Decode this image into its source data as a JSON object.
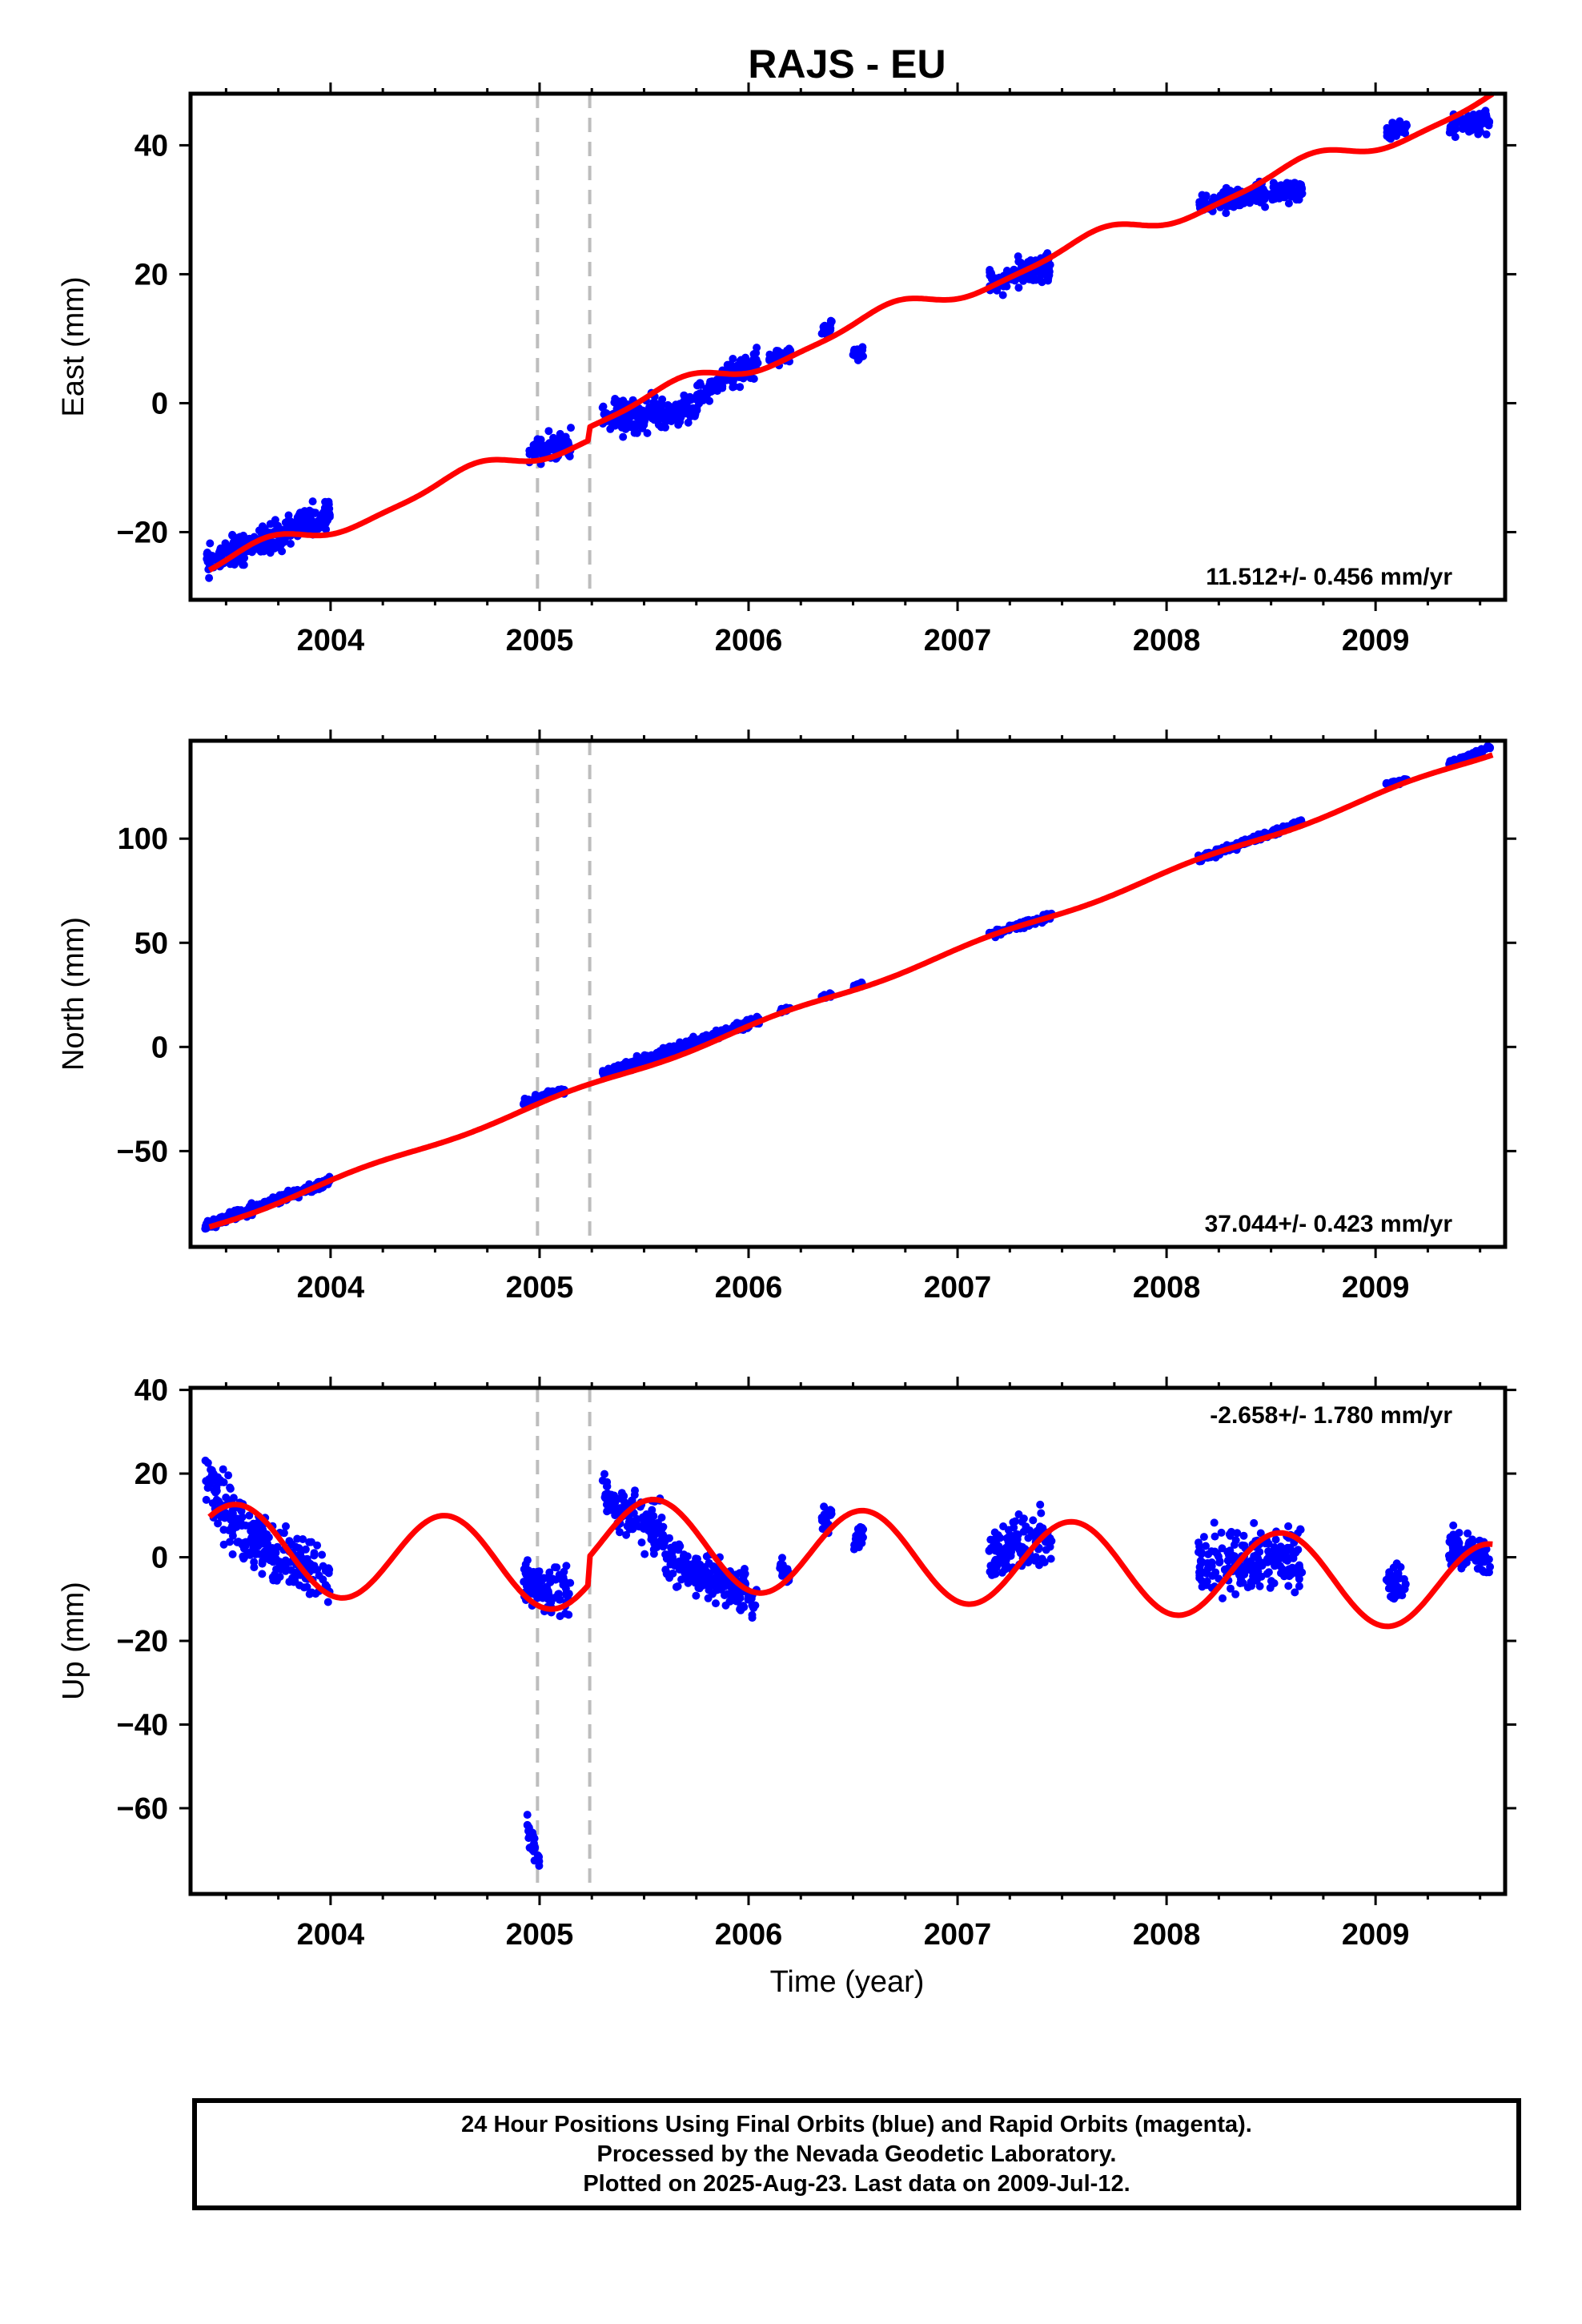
{
  "title": "RAJS - EU",
  "xlabel": "Time (year)",
  "colors": {
    "data": "#0000ff",
    "model": "#ff0000",
    "offset": "#bdbdbd"
  },
  "footnote": {
    "line1": "24 Hour Positions Using Final Orbits (blue) and Rapid Orbits (magenta).",
    "line2": "Processed by the Nevada Geodetic Laboratory.",
    "line3": "Plotted on 2025-Aug-23. Last data on 2009-Jul-12."
  },
  "chart_data": [
    {
      "type": "scatter",
      "ylabel": "East (mm)",
      "rate_label": "11.512+/- 0.456 mm/yr",
      "rate_position": "bottom-right",
      "xlim": [
        2003.33,
        2009.62
      ],
      "ylim": [
        -30.5,
        48
      ],
      "xticks": [
        2004,
        2005,
        2006,
        2007,
        2008,
        2009
      ],
      "yticks": [
        -20,
        0,
        20,
        40
      ],
      "offset_lines": [
        2004.99,
        2005.24
      ],
      "data_clusters": [
        {
          "x_start": 2003.4,
          "x_end": 2004.0,
          "y_start": -25,
          "y_end": -17,
          "spread": 2.5
        },
        {
          "x_start": 2004.95,
          "x_end": 2005.15,
          "y_start": -8,
          "y_end": -6,
          "spread": 2
        },
        {
          "x_start": 2005.3,
          "x_end": 2005.75,
          "y_start": -2,
          "y_end": -1,
          "spread": 2.5
        },
        {
          "x_start": 2005.75,
          "x_end": 2006.05,
          "y_start": 1,
          "y_end": 7,
          "spread": 2
        },
        {
          "x_start": 2006.1,
          "x_end": 2006.2,
          "y_start": 7,
          "y_end": 7.5,
          "spread": 1
        },
        {
          "x_start": 2006.35,
          "x_end": 2006.4,
          "y_start": 11,
          "y_end": 12,
          "spread": 1
        },
        {
          "x_start": 2006.5,
          "x_end": 2006.55,
          "y_start": 7.5,
          "y_end": 8,
          "spread": 1
        },
        {
          "x_start": 2007.15,
          "x_end": 2007.45,
          "y_start": 19,
          "y_end": 21,
          "spread": 2
        },
        {
          "x_start": 2008.15,
          "x_end": 2008.65,
          "y_start": 31,
          "y_end": 33,
          "spread": 1.5
        },
        {
          "x_start": 2009.05,
          "x_end": 2009.15,
          "y_start": 42,
          "y_end": 43,
          "spread": 1
        },
        {
          "x_start": 2009.35,
          "x_end": 2009.55,
          "y_start": 43,
          "y_end": 44,
          "spread": 1.5
        }
      ],
      "model": {
        "ref_year": 2003.4,
        "start_value": -26,
        "rate": 11.512,
        "seasonal": [
          {
            "a": 1.5,
            "phase": 0.0
          },
          {
            "a": 0.4,
            "phase": 0.3
          }
        ],
        "steps": [
          {
            "x": 2005.24,
            "dy": 2.0
          }
        ]
      }
    },
    {
      "type": "scatter",
      "ylabel": "North (mm)",
      "rate_label": "37.044+/- 0.423 mm/yr",
      "rate_position": "bottom-right",
      "xlim": [
        2003.33,
        2009.62
      ],
      "ylim": [
        -96,
        147
      ],
      "xticks": [
        2004,
        2005,
        2006,
        2007,
        2008,
        2009
      ],
      "yticks": [
        -50,
        0,
        50,
        100
      ],
      "offset_lines": [
        2004.99,
        2005.24
      ],
      "data_clusters": [
        {
          "x_start": 2003.4,
          "x_end": 2004.0,
          "y_start": -86,
          "y_end": -64,
          "spread": 2
        },
        {
          "x_start": 2004.92,
          "x_end": 2005.12,
          "y_start": -27,
          "y_end": -21,
          "spread": 1.5
        },
        {
          "x_start": 2005.3,
          "x_end": 2006.05,
          "y_start": -13,
          "y_end": 13,
          "spread": 2
        },
        {
          "x_start": 2006.15,
          "x_end": 2006.2,
          "y_start": 17,
          "y_end": 19,
          "spread": 1
        },
        {
          "x_start": 2006.35,
          "x_end": 2006.4,
          "y_start": 24,
          "y_end": 25,
          "spread": 1
        },
        {
          "x_start": 2006.5,
          "x_end": 2006.55,
          "y_start": 29,
          "y_end": 30,
          "spread": 1
        },
        {
          "x_start": 2007.15,
          "x_end": 2007.45,
          "y_start": 54,
          "y_end": 63,
          "spread": 1.5
        },
        {
          "x_start": 2008.15,
          "x_end": 2008.65,
          "y_start": 90,
          "y_end": 108,
          "spread": 1.5
        },
        {
          "x_start": 2009.05,
          "x_end": 2009.15,
          "y_start": 126,
          "y_end": 128,
          "spread": 1
        },
        {
          "x_start": 2009.35,
          "x_end": 2009.55,
          "y_start": 136,
          "y_end": 144,
          "spread": 1
        }
      ],
      "model": {
        "ref_year": 2003.4,
        "start_value": -87,
        "rate": 37.044,
        "seasonal": [
          {
            "a": 1.2,
            "phase": 0.5
          }
        ],
        "steps": []
      }
    },
    {
      "type": "scatter",
      "ylabel": "Up (mm)",
      "rate_label": "-2.658+/- 1.780 mm/yr",
      "rate_position": "top-right",
      "xlim": [
        2003.33,
        2009.62
      ],
      "ylim": [
        -80.5,
        40.5
      ],
      "xticks": [
        2004,
        2005,
        2006,
        2007,
        2008,
        2009
      ],
      "yticks": [
        -60,
        -40,
        -20,
        0,
        20,
        40
      ],
      "offset_lines": [
        2004.99,
        2005.24
      ],
      "data_clusters": [
        {
          "x_start": 2003.4,
          "x_end": 2003.6,
          "y_start": 18,
          "y_end": 5,
          "spread": 7
        },
        {
          "x_start": 2003.6,
          "x_end": 2004.0,
          "y_start": 5,
          "y_end": -5,
          "spread": 6
        },
        {
          "x_start": 2004.92,
          "x_end": 2005.15,
          "y_start": -6,
          "y_end": -9,
          "spread": 5
        },
        {
          "x_start": 2004.94,
          "x_end": 2005.0,
          "y_start": -64,
          "y_end": -74,
          "spread": 3
        },
        {
          "x_start": 2005.3,
          "x_end": 2005.6,
          "y_start": 14,
          "y_end": 5,
          "spread": 6
        },
        {
          "x_start": 2005.6,
          "x_end": 2006.05,
          "y_start": 0,
          "y_end": -10,
          "spread": 5
        },
        {
          "x_start": 2006.15,
          "x_end": 2006.2,
          "y_start": -2,
          "y_end": -4,
          "spread": 3
        },
        {
          "x_start": 2006.35,
          "x_end": 2006.4,
          "y_start": 8,
          "y_end": 11,
          "spread": 3
        },
        {
          "x_start": 2006.5,
          "x_end": 2006.55,
          "y_start": 3,
          "y_end": 6,
          "spread": 2
        },
        {
          "x_start": 2007.15,
          "x_end": 2007.45,
          "y_start": 0,
          "y_end": 6,
          "spread": 6
        },
        {
          "x_start": 2008.15,
          "x_end": 2008.65,
          "y_start": -2,
          "y_end": 0,
          "spread": 7
        },
        {
          "x_start": 2009.05,
          "x_end": 2009.15,
          "y_start": -6,
          "y_end": -8,
          "spread": 4
        },
        {
          "x_start": 2009.35,
          "x_end": 2009.55,
          "y_start": 3,
          "y_end": 0,
          "spread": 4
        }
      ],
      "model": {
        "ref_year": 2003.4,
        "start_value": 2.5,
        "rate": -2.658,
        "seasonal": [
          {
            "a": 10.5,
            "phase": 0.1
          }
        ],
        "steps": [
          {
            "x": 2005.24,
            "dy": 6.5
          }
        ]
      }
    }
  ]
}
